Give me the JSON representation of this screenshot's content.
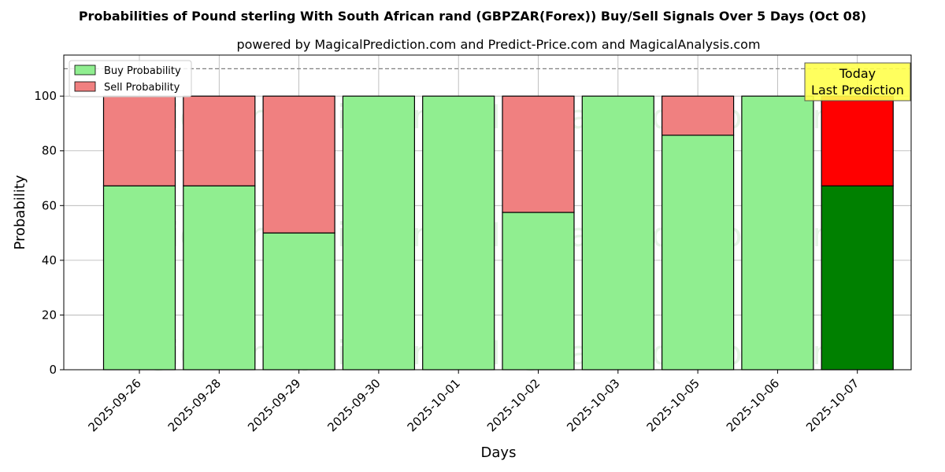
{
  "chart_data": {
    "type": "bar",
    "stacked": true,
    "title": "Probabilities of Pound sterling With South African rand (GBPZAR(Forex)) Buy/Sell Signals Over 5 Days (Oct 08)",
    "subtitle": "powered by MagicalPrediction.com and Predict-Price.com and MagicalAnalysis.com",
    "xlabel": "Days",
    "ylabel": "Probability",
    "ylim": [
      0,
      115
    ],
    "yticks": [
      0,
      20,
      40,
      60,
      80,
      100
    ],
    "grid": true,
    "legend_position": "upper-left",
    "reference_line": 110,
    "categories": [
      "2025-09-26",
      "2025-09-28",
      "2025-09-29",
      "2025-09-30",
      "2025-10-01",
      "2025-10-02",
      "2025-10-03",
      "2025-10-05",
      "2025-10-06",
      "2025-10-07"
    ],
    "series": [
      {
        "name": "Buy Probability",
        "values": [
          67.2,
          67.2,
          50.0,
          100,
          100,
          57.5,
          100,
          85.7,
          100,
          67.2
        ],
        "color": "#90ee90",
        "highlight_color": "#008000"
      },
      {
        "name": "Sell Probability",
        "values": [
          32.8,
          32.8,
          50.0,
          0,
          0,
          42.5,
          0,
          14.3,
          0,
          32.8
        ],
        "color": "#f08080",
        "highlight_color": "#ff0000"
      }
    ],
    "highlight_index": 9,
    "annotation": {
      "line1": "Today",
      "line2": "Last Prediction",
      "color": "#ffff4d"
    },
    "watermarks": [
      "MagicalAnalysis.com",
      "MagicalPrediction.com"
    ]
  }
}
